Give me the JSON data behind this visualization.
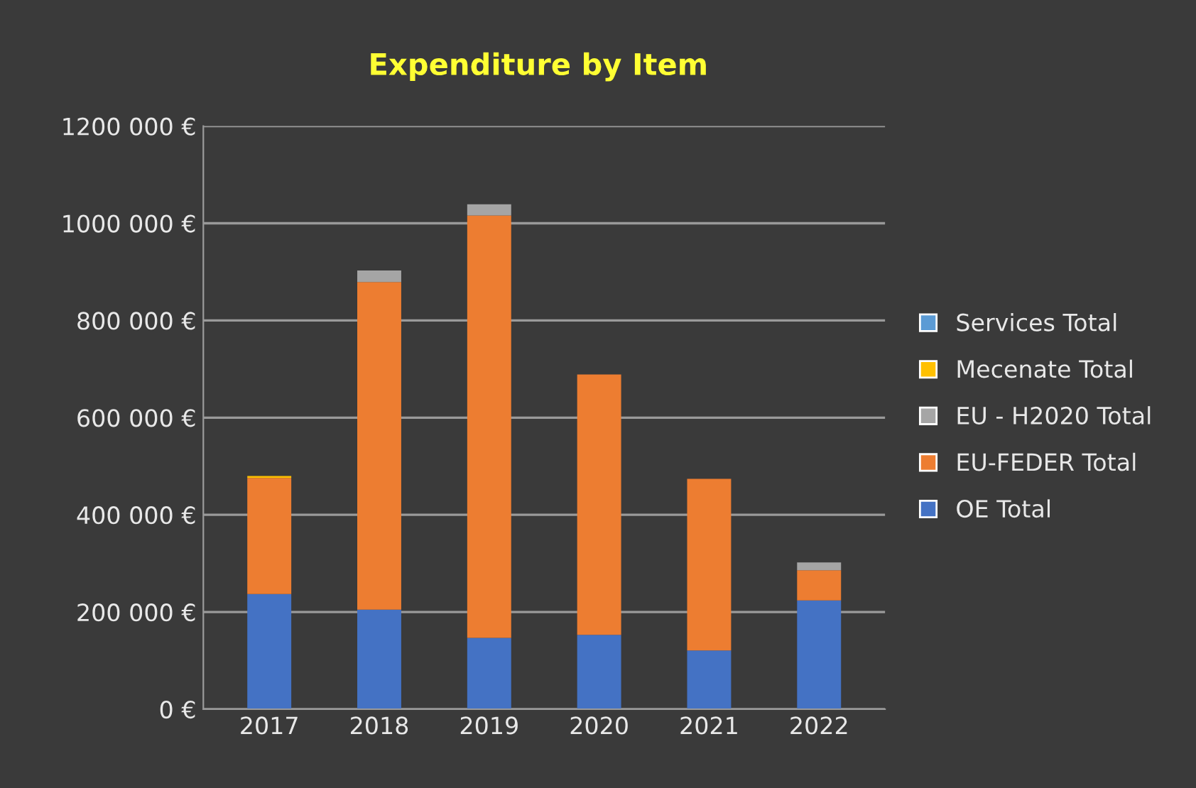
{
  "chart_data": {
    "type": "bar",
    "title": "Expenditure by Item",
    "stacked": true,
    "categories": [
      "2017",
      "2018",
      "2019",
      "2020",
      "2021",
      "2022"
    ],
    "series": [
      {
        "name": "OE Total",
        "color": "#4472c4",
        "values": [
          237000,
          205000,
          147000,
          153000,
          121000,
          224000
        ]
      },
      {
        "name": "EU-FEDER Total",
        "color": "#ed7d31",
        "values": [
          239000,
          674000,
          869000,
          536000,
          353000,
          62000
        ]
      },
      {
        "name": "EU - H2020 Total",
        "color": "#a5a5a5",
        "values": [
          0,
          24000,
          23000,
          0,
          0,
          16000
        ]
      },
      {
        "name": "Mecenate Total",
        "color": "#ffc000",
        "values": [
          4000,
          0,
          0,
          0,
          0,
          0
        ]
      },
      {
        "name": "Services Total",
        "color": "#5b9bd5",
        "values": [
          0,
          0,
          0,
          0,
          0,
          0
        ]
      }
    ],
    "ylim": [
      0,
      1200000
    ],
    "yticks": [
      {
        "value": 0,
        "label": "0 €"
      },
      {
        "value": 200000,
        "label": "200 000 €"
      },
      {
        "value": 400000,
        "label": "400 000 €"
      },
      {
        "value": 600000,
        "label": "600 000 €"
      },
      {
        "value": 800000,
        "label": "800 000 €"
      },
      {
        "value": 1000000,
        "label": "1000 000 €"
      },
      {
        "value": 1200000,
        "label": "1200 000 €"
      }
    ],
    "grid": "y",
    "legend": "right"
  }
}
